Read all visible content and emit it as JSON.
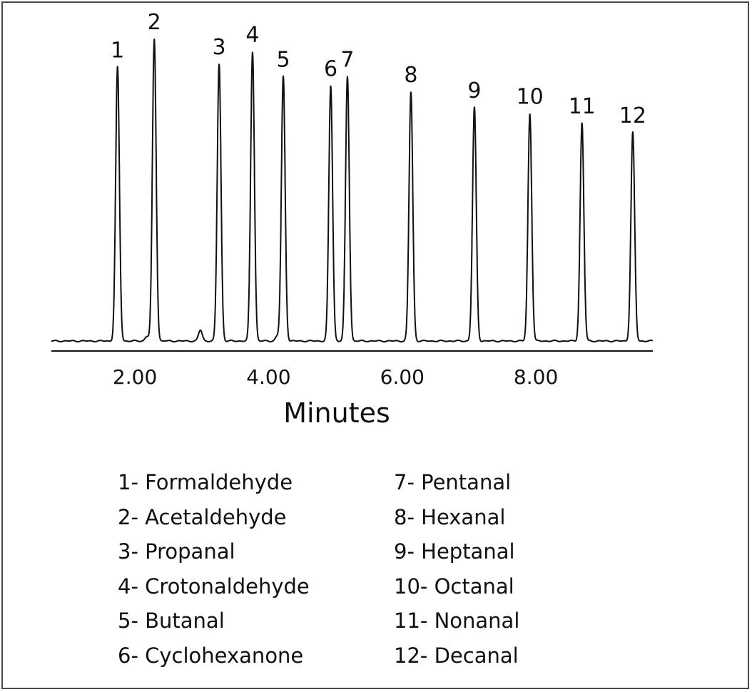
{
  "chart_data": {
    "type": "line",
    "xlabel": "Minutes",
    "ylabel": "",
    "xlim": [
      0.75,
      9.75
    ],
    "ylim": [
      0,
      100
    ],
    "x_ticks": [
      "2.00",
      "4.00",
      "6.00",
      "8.00"
    ],
    "x_tick_values": [
      2,
      4,
      6,
      8
    ],
    "grid": false,
    "peaks": [
      {
        "label": "1",
        "retention_time": 1.74,
        "height": 88
      },
      {
        "label": "2",
        "retention_time": 2.29,
        "height": 97
      },
      {
        "label": "3",
        "retention_time": 3.26,
        "height": 89
      },
      {
        "label": "4",
        "retention_time": 3.76,
        "height": 93
      },
      {
        "label": "5",
        "retention_time": 4.22,
        "height": 85
      },
      {
        "label": "6",
        "retention_time": 4.93,
        "height": 82
      },
      {
        "label": "7",
        "retention_time": 5.18,
        "height": 85
      },
      {
        "label": "8",
        "retention_time": 6.13,
        "height": 80
      },
      {
        "label": "9",
        "retention_time": 7.08,
        "height": 75
      },
      {
        "label": "10",
        "retention_time": 7.91,
        "height": 73
      },
      {
        "label": "11",
        "retention_time": 8.69,
        "height": 70
      },
      {
        "label": "12",
        "retention_time": 9.45,
        "height": 67
      }
    ],
    "minor_peaks": [
      {
        "retention_time": 2.18,
        "height": 1.5
      },
      {
        "retention_time": 2.98,
        "height": 3.5
      },
      {
        "retention_time": 4.13,
        "height": 1.5
      }
    ]
  },
  "legend": {
    "left": [
      "1- Formaldehyde",
      "2- Acetaldehyde",
      "3- Propanal",
      "4- Crotonaldehyde",
      "5- Butanal",
      "6- Cyclohexanone"
    ],
    "right": [
      "7-  Pentanal",
      "8-  Hexanal",
      "9-  Heptanal",
      "10- Octanal",
      "11- Nonanal",
      "12- Decanal"
    ]
  },
  "colors": {
    "trace": "#111111",
    "border": "#4a4a4a"
  }
}
